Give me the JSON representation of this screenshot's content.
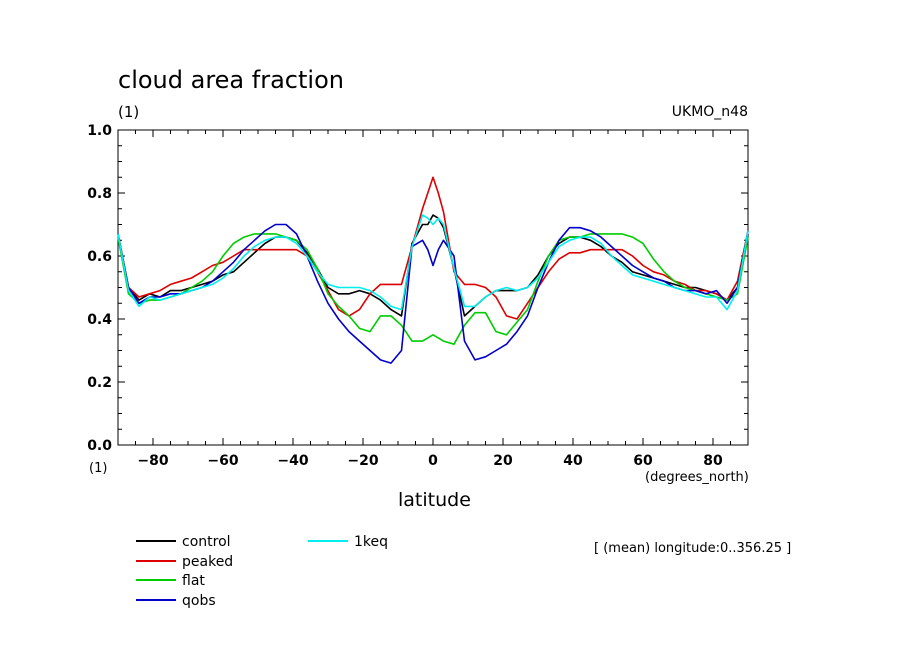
{
  "header": {
    "title": "cloud area fraction",
    "subtitle": "(1)",
    "model": "UKMO_n48",
    "y_unit": "(1)",
    "x_unit": "(degrees_north)",
    "x_title": "latitude",
    "note": "[ (mean) longitude:0..356.25 ]"
  },
  "chart_data": {
    "type": "line",
    "title": "cloud area fraction",
    "subtitle": "(1)",
    "xlabel": "latitude",
    "ylabel": "",
    "xlim": [
      -90,
      90
    ],
    "ylim": [
      0.0,
      1.0
    ],
    "x_ticks": [
      -80,
      -60,
      -40,
      -20,
      0,
      20,
      40,
      60,
      80
    ],
    "y_ticks": [
      0.0,
      0.2,
      0.4,
      0.6,
      0.8,
      1.0
    ],
    "x_tick_labels": [
      "−80",
      "−60",
      "−40",
      "−20",
      "0",
      "20",
      "40",
      "60",
      "80"
    ],
    "y_tick_labels": [
      "0.0",
      "0.2",
      "0.4",
      "0.6",
      "0.8",
      "1.0"
    ],
    "grid": false,
    "legend_position": "bottom",
    "series": [
      {
        "name": "control",
        "color": "#000000",
        "x": [
          -90,
          -87,
          -84,
          -81,
          -78,
          -75,
          -72,
          -69,
          -66,
          -63,
          -60,
          -57,
          -54,
          -51,
          -48,
          -45,
          -42,
          -39,
          -36,
          -33,
          -30,
          -27,
          -24,
          -21,
          -18,
          -15,
          -12,
          -9,
          -6,
          -3,
          -1.5,
          0,
          1.5,
          3,
          6,
          9,
          12,
          15,
          18,
          21,
          24,
          27,
          30,
          33,
          36,
          39,
          42,
          45,
          48,
          51,
          54,
          57,
          60,
          63,
          66,
          69,
          72,
          75,
          78,
          81,
          84,
          87,
          90
        ],
        "y": [
          0.67,
          0.5,
          0.46,
          0.48,
          0.47,
          0.49,
          0.49,
          0.5,
          0.51,
          0.52,
          0.54,
          0.55,
          0.58,
          0.61,
          0.64,
          0.66,
          0.66,
          0.65,
          0.61,
          0.56,
          0.5,
          0.48,
          0.48,
          0.49,
          0.48,
          0.46,
          0.43,
          0.41,
          0.64,
          0.7,
          0.7,
          0.73,
          0.72,
          0.69,
          0.56,
          0.41,
          0.44,
          0.47,
          0.49,
          0.49,
          0.49,
          0.5,
          0.54,
          0.6,
          0.64,
          0.66,
          0.66,
          0.65,
          0.63,
          0.6,
          0.58,
          0.55,
          0.54,
          0.53,
          0.52,
          0.51,
          0.5,
          0.5,
          0.49,
          0.48,
          0.46,
          0.5,
          0.67
        ]
      },
      {
        "name": "peaked",
        "color": "#dd0000",
        "x": [
          -90,
          -87,
          -84,
          -81,
          -78,
          -75,
          -72,
          -69,
          -66,
          -63,
          -60,
          -57,
          -54,
          -51,
          -48,
          -45,
          -42,
          -39,
          -36,
          -33,
          -30,
          -27,
          -24,
          -21,
          -18,
          -15,
          -12,
          -9,
          -6,
          -3,
          -1.5,
          0,
          1.5,
          3,
          6,
          9,
          12,
          15,
          18,
          21,
          24,
          27,
          30,
          33,
          36,
          39,
          42,
          45,
          48,
          51,
          54,
          57,
          60,
          63,
          66,
          69,
          72,
          75,
          78,
          81,
          84,
          87,
          90
        ],
        "y": [
          0.67,
          0.5,
          0.47,
          0.48,
          0.49,
          0.51,
          0.52,
          0.53,
          0.55,
          0.57,
          0.58,
          0.6,
          0.62,
          0.62,
          0.62,
          0.62,
          0.62,
          0.62,
          0.6,
          0.55,
          0.49,
          0.43,
          0.41,
          0.43,
          0.48,
          0.51,
          0.51,
          0.51,
          0.63,
          0.75,
          0.8,
          0.85,
          0.8,
          0.74,
          0.55,
          0.51,
          0.51,
          0.5,
          0.47,
          0.41,
          0.4,
          0.45,
          0.5,
          0.55,
          0.59,
          0.61,
          0.61,
          0.62,
          0.62,
          0.62,
          0.62,
          0.6,
          0.57,
          0.55,
          0.54,
          0.52,
          0.51,
          0.49,
          0.49,
          0.48,
          0.46,
          0.52,
          0.68
        ]
      },
      {
        "name": "flat",
        "color": "#00cc00",
        "x": [
          -90,
          -87,
          -84,
          -81,
          -78,
          -75,
          -72,
          -69,
          -66,
          -63,
          -60,
          -57,
          -54,
          -51,
          -48,
          -45,
          -42,
          -39,
          -36,
          -33,
          -30,
          -27,
          -24,
          -21,
          -18,
          -15,
          -12,
          -9,
          -6,
          -3,
          -1.5,
          0,
          1.5,
          3,
          6,
          9,
          12,
          15,
          18,
          21,
          24,
          27,
          30,
          33,
          36,
          39,
          42,
          45,
          48,
          51,
          54,
          57,
          60,
          63,
          66,
          69,
          72,
          75,
          78,
          81,
          84,
          87,
          90
        ],
        "y": [
          0.66,
          0.48,
          0.45,
          0.46,
          0.46,
          0.47,
          0.48,
          0.5,
          0.52,
          0.55,
          0.6,
          0.64,
          0.66,
          0.67,
          0.67,
          0.67,
          0.66,
          0.65,
          0.62,
          0.56,
          0.48,
          0.44,
          0.41,
          0.37,
          0.36,
          0.41,
          0.41,
          0.38,
          0.33,
          0.33,
          0.34,
          0.35,
          0.34,
          0.33,
          0.32,
          0.38,
          0.42,
          0.42,
          0.36,
          0.35,
          0.39,
          0.43,
          0.52,
          0.6,
          0.65,
          0.66,
          0.66,
          0.67,
          0.67,
          0.67,
          0.67,
          0.66,
          0.64,
          0.59,
          0.55,
          0.52,
          0.5,
          0.49,
          0.48,
          0.47,
          0.46,
          0.48,
          0.66
        ]
      },
      {
        "name": "qobs",
        "color": "#0000cc",
        "x": [
          -90,
          -87,
          -84,
          -81,
          -78,
          -75,
          -72,
          -69,
          -66,
          -63,
          -60,
          -57,
          -54,
          -51,
          -48,
          -45,
          -42,
          -39,
          -36,
          -33,
          -30,
          -27,
          -24,
          -21,
          -18,
          -15,
          -12,
          -9,
          -6,
          -3,
          -1.5,
          0,
          1.5,
          3,
          6,
          9,
          12,
          15,
          18,
          21,
          24,
          27,
          30,
          33,
          36,
          39,
          42,
          45,
          48,
          51,
          54,
          57,
          60,
          63,
          66,
          69,
          72,
          75,
          78,
          81,
          84,
          87,
          90
        ],
        "y": [
          0.67,
          0.5,
          0.45,
          0.47,
          0.47,
          0.48,
          0.48,
          0.49,
          0.5,
          0.52,
          0.55,
          0.58,
          0.62,
          0.65,
          0.68,
          0.7,
          0.7,
          0.67,
          0.6,
          0.52,
          0.45,
          0.4,
          0.36,
          0.33,
          0.3,
          0.27,
          0.26,
          0.3,
          0.63,
          0.65,
          0.62,
          0.57,
          0.62,
          0.65,
          0.6,
          0.33,
          0.27,
          0.28,
          0.3,
          0.32,
          0.36,
          0.41,
          0.5,
          0.58,
          0.65,
          0.69,
          0.69,
          0.68,
          0.66,
          0.63,
          0.6,
          0.57,
          0.55,
          0.53,
          0.52,
          0.5,
          0.49,
          0.49,
          0.48,
          0.49,
          0.45,
          0.5,
          0.68
        ]
      },
      {
        "name": "1keq",
        "color": "#00eeee",
        "x": [
          -90,
          -87,
          -84,
          -81,
          -78,
          -75,
          -72,
          -69,
          -66,
          -63,
          -60,
          -57,
          -54,
          -51,
          -48,
          -45,
          -42,
          -39,
          -36,
          -33,
          -30,
          -27,
          -24,
          -21,
          -18,
          -15,
          -12,
          -9,
          -6,
          -3,
          -1.5,
          0,
          1.5,
          3,
          6,
          9,
          12,
          15,
          18,
          21,
          24,
          27,
          30,
          33,
          36,
          39,
          42,
          45,
          48,
          51,
          54,
          57,
          60,
          63,
          66,
          69,
          72,
          75,
          78,
          81,
          84,
          87,
          90
        ],
        "y": [
          0.67,
          0.49,
          0.44,
          0.47,
          0.46,
          0.47,
          0.48,
          0.49,
          0.5,
          0.51,
          0.53,
          0.56,
          0.6,
          0.63,
          0.65,
          0.66,
          0.66,
          0.64,
          0.6,
          0.55,
          0.51,
          0.5,
          0.5,
          0.5,
          0.49,
          0.47,
          0.44,
          0.43,
          0.63,
          0.73,
          0.72,
          0.7,
          0.72,
          0.7,
          0.56,
          0.44,
          0.44,
          0.47,
          0.49,
          0.5,
          0.49,
          0.5,
          0.53,
          0.58,
          0.63,
          0.65,
          0.66,
          0.66,
          0.64,
          0.6,
          0.57,
          0.54,
          0.53,
          0.52,
          0.51,
          0.5,
          0.49,
          0.48,
          0.47,
          0.47,
          0.43,
          0.49,
          0.68
        ]
      }
    ]
  }
}
